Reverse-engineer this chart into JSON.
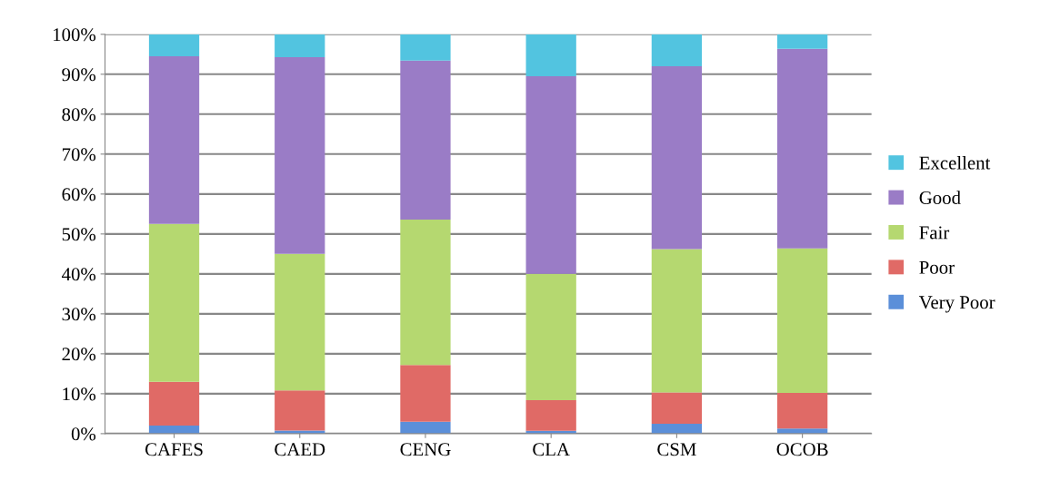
{
  "chart_data": {
    "type": "bar",
    "stacked": true,
    "categories": [
      "CAFES",
      "CAED",
      "CENG",
      "CLA",
      "CSM",
      "OCOB"
    ],
    "series": [
      {
        "name": "Very Poor",
        "color": "#5b8fd9",
        "values": [
          2,
          0.8,
          3,
          0.7,
          2.5,
          1.3
        ]
      },
      {
        "name": "Poor",
        "color": "#e06a66",
        "values": [
          11,
          10,
          14.2,
          7.7,
          7.8,
          8.9
        ]
      },
      {
        "name": "Fair",
        "color": "#b5d870",
        "values": [
          39.5,
          34.2,
          36.4,
          31.6,
          35.9,
          36.2
        ]
      },
      {
        "name": "Good",
        "color": "#9a7cc6",
        "values": [
          42,
          49.3,
          39.8,
          49.5,
          45.8,
          50
        ]
      },
      {
        "name": "Excellent",
        "color": "#52c4e0",
        "values": [
          5.5,
          5.7,
          6.6,
          10.5,
          8,
          3.6
        ]
      }
    ],
    "ylim": [
      0,
      100
    ],
    "yticks": [
      {
        "value": 0,
        "label": "0%"
      },
      {
        "value": 10,
        "label": "10%"
      },
      {
        "value": 20,
        "label": "20%"
      },
      {
        "value": 30,
        "label": "30%"
      },
      {
        "value": 40,
        "label": "40%"
      },
      {
        "value": 50,
        "label": "50%"
      },
      {
        "value": 60,
        "label": "60%"
      },
      {
        "value": 70,
        "label": "70%"
      },
      {
        "value": 80,
        "label": "80%"
      },
      {
        "value": 90,
        "label": "90%"
      },
      {
        "value": 100,
        "label": "100%"
      }
    ],
    "grid": "y",
    "legend": "right"
  }
}
